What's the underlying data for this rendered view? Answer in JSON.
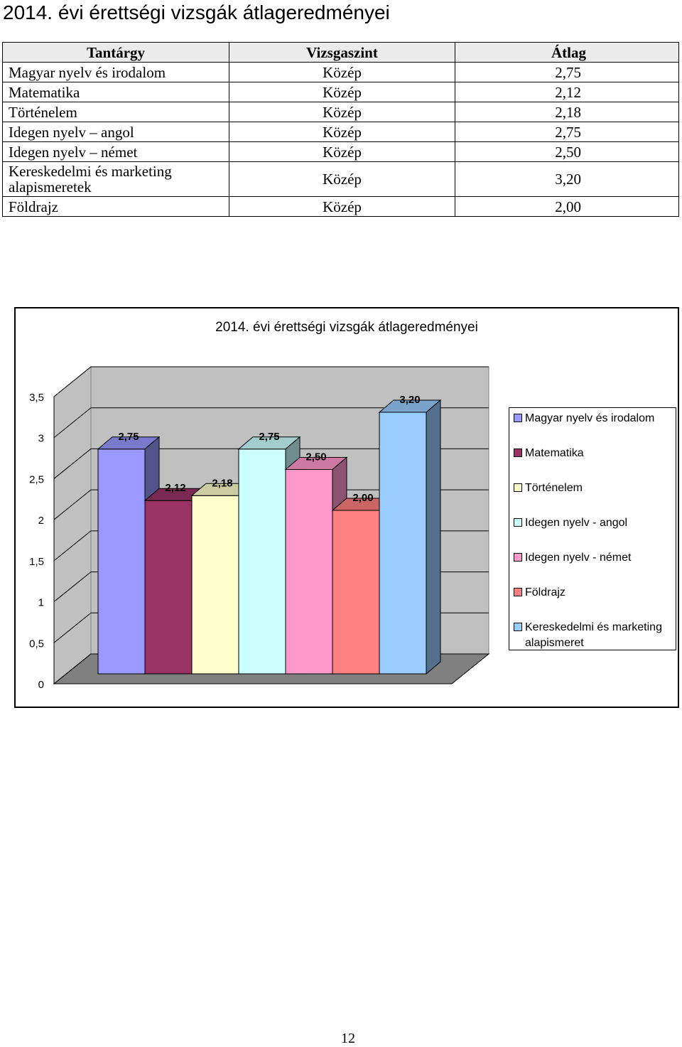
{
  "page": {
    "title": "2014. évi érettségi vizsgák átlageredményei",
    "page_number": "12"
  },
  "table": {
    "headers": [
      "Tantárgy",
      "Vizsgaszint",
      "Átlag"
    ],
    "rows": [
      [
        "Magyar nyelv és irodalom",
        "Közép",
        "2,75"
      ],
      [
        "Matematika",
        "Közép",
        "2,12"
      ],
      [
        "Történelem",
        "Közép",
        "2,18"
      ],
      [
        "Idegen nyelv – angol",
        "Közép",
        "2,75"
      ],
      [
        "Idegen nyelv – német",
        "Közép",
        "2,50"
      ],
      [
        "Kereskedelmi és marketing alapismeretek",
        "Közép",
        "3,20"
      ],
      [
        "Földrajz",
        "Közép",
        "2,00"
      ]
    ]
  },
  "chart_data": {
    "type": "bar",
    "title": "2014. évi érettségi vizsgák átlageredményei",
    "ylim": [
      0,
      3.5
    ],
    "y_ticks": [
      "0",
      "0,5",
      "1",
      "1,5",
      "2",
      "2,5",
      "3",
      "3,5"
    ],
    "grid": true,
    "legend_position": "right",
    "series": [
      {
        "name": "Magyar nyelv és irodalom",
        "value": 2.75,
        "label": "2,75",
        "color": "#9999ff"
      },
      {
        "name": "Matematika",
        "value": 2.12,
        "label": "2,12",
        "color": "#993366"
      },
      {
        "name": "Történelem",
        "value": 2.18,
        "label": "2,18",
        "color": "#ffffcc"
      },
      {
        "name": "Idegen nyelv - angol",
        "value": 2.75,
        "label": "2,75",
        "color": "#ccffff"
      },
      {
        "name": "Idegen nyelv - német",
        "value": 2.5,
        "label": "2,50",
        "color": "#ff99cc"
      },
      {
        "name": "Földrajz",
        "value": 2.0,
        "label": "2,00",
        "color": "#ff8080"
      },
      {
        "name": "Kereskedelmi és marketing alapismeret",
        "value": 3.2,
        "label": "3,20",
        "color": "#99ccff"
      }
    ]
  }
}
